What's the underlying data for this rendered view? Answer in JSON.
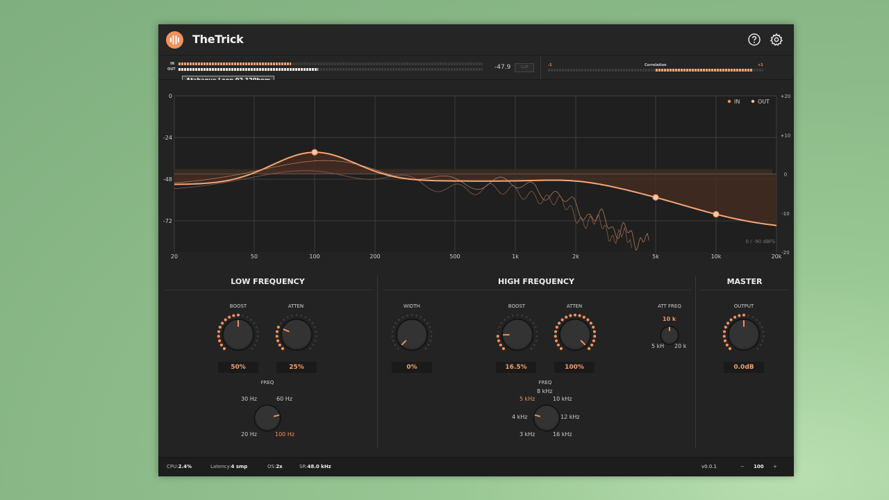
{
  "app": {
    "title": "TheTrick"
  },
  "header": {
    "help_icon": "question-circle-icon",
    "settings_icon": "gear-icon"
  },
  "meters": {
    "in_label": "IN",
    "out_label": "OUT",
    "in_level": 0.37,
    "out_level": 0.46,
    "peak_value": "-47.9",
    "correlation_label": "Correlation",
    "correlation_min": "-1",
    "correlation_max": "+1",
    "correlation_value": 0.9,
    "tooltip": "Atabaque Loop 02 120bpm"
  },
  "graph": {
    "db_labels_left": [
      "0",
      "-24",
      "-48",
      "-72"
    ],
    "db_labels_right": [
      "+20",
      "+10",
      "0",
      "-10",
      "-20"
    ],
    "freq_labels": [
      "20",
      "50",
      "100",
      "200",
      "500",
      "1k",
      "2k",
      "5k",
      "10k",
      "20k"
    ],
    "legend_in": "IN",
    "legend_out": "OUT",
    "range_text": "0 / -90 dBFS",
    "colors": {
      "accent": "#f2925c",
      "out": "#f7c39f",
      "grid": "#3e3e3e"
    }
  },
  "low": {
    "title": "LOW FREQUENCY",
    "boost_label": "BOOST",
    "boost_value": "50%",
    "boost": 0.5,
    "atten_label": "ATTEN",
    "atten_value": "25%",
    "atten": 0.25,
    "freq_label": "FREQ",
    "freq_options": [
      "30 Hz",
      "60 Hz",
      "20 Hz",
      "100 Hz"
    ],
    "freq_selected": "100 Hz"
  },
  "high": {
    "title": "HIGH FREQUENCY",
    "width_label": "WIDTH",
    "width_value": "0%",
    "width": 0,
    "boost_label": "BOOST",
    "boost_value": "16.5%",
    "boost": 0.165,
    "atten_label": "ATTEN",
    "atten_value": "100%",
    "atten": 1.0,
    "attfreq_label": "ATT FREQ",
    "attfreq_value": "10 k",
    "attfreq_min": "5 kH",
    "attfreq_max": "20 k",
    "freq_label": "FREQ",
    "freq_options": [
      "8 kHz",
      "5 kHz",
      "10 kHz",
      "4 kHz",
      "12 kHz",
      "3 kHz",
      "16 kHz"
    ],
    "freq_selected": "5 kHz"
  },
  "master": {
    "title": "MASTER",
    "output_label": "OUTPUT",
    "output_value": "0.0dB",
    "output": 0.5
  },
  "footer": {
    "cpu_label": "CPU:",
    "cpu": "2.4%",
    "latency_label": "Latency:",
    "latency": "4 smp",
    "os_label": "OS:",
    "os": "2x",
    "sr_label": "SR:",
    "sr": "48.0 kHz",
    "version": "v0.0.1",
    "zoom_minus": "−",
    "zoom": "100",
    "zoom_plus": "+"
  }
}
